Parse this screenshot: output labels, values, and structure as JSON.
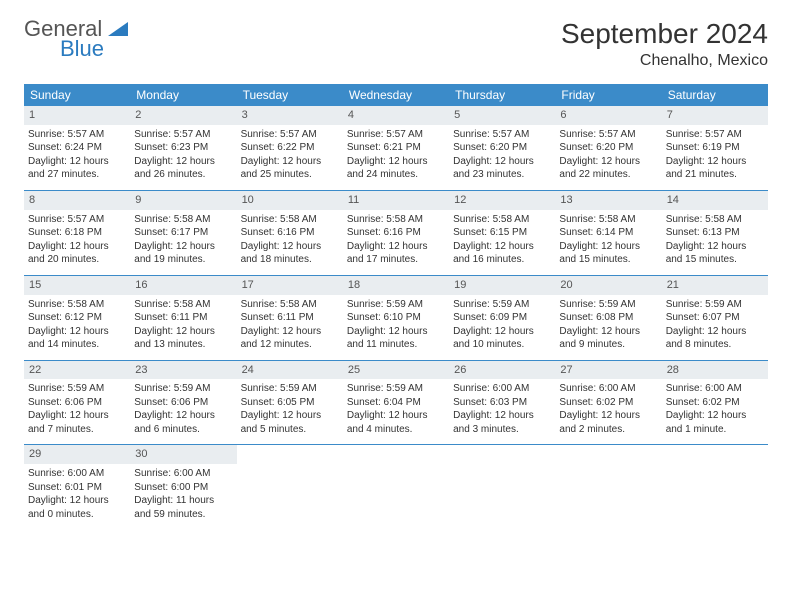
{
  "logo": {
    "word1": "General",
    "word2": "Blue",
    "icon_color": "#2b7bbf"
  },
  "title": "September 2024",
  "location": "Chenalho, Mexico",
  "colors": {
    "header_bg": "#3b8bc9",
    "daynum_bg": "#e9edf0",
    "row_border": "#3b8bc9",
    "text": "#333333"
  },
  "weekdays": [
    "Sunday",
    "Monday",
    "Tuesday",
    "Wednesday",
    "Thursday",
    "Friday",
    "Saturday"
  ],
  "days": [
    {
      "n": "1",
      "sr": "5:57 AM",
      "ss": "6:24 PM",
      "dl": "12 hours and 27 minutes."
    },
    {
      "n": "2",
      "sr": "5:57 AM",
      "ss": "6:23 PM",
      "dl": "12 hours and 26 minutes."
    },
    {
      "n": "3",
      "sr": "5:57 AM",
      "ss": "6:22 PM",
      "dl": "12 hours and 25 minutes."
    },
    {
      "n": "4",
      "sr": "5:57 AM",
      "ss": "6:21 PM",
      "dl": "12 hours and 24 minutes."
    },
    {
      "n": "5",
      "sr": "5:57 AM",
      "ss": "6:20 PM",
      "dl": "12 hours and 23 minutes."
    },
    {
      "n": "6",
      "sr": "5:57 AM",
      "ss": "6:20 PM",
      "dl": "12 hours and 22 minutes."
    },
    {
      "n": "7",
      "sr": "5:57 AM",
      "ss": "6:19 PM",
      "dl": "12 hours and 21 minutes."
    },
    {
      "n": "8",
      "sr": "5:57 AM",
      "ss": "6:18 PM",
      "dl": "12 hours and 20 minutes."
    },
    {
      "n": "9",
      "sr": "5:58 AM",
      "ss": "6:17 PM",
      "dl": "12 hours and 19 minutes."
    },
    {
      "n": "10",
      "sr": "5:58 AM",
      "ss": "6:16 PM",
      "dl": "12 hours and 18 minutes."
    },
    {
      "n": "11",
      "sr": "5:58 AM",
      "ss": "6:16 PM",
      "dl": "12 hours and 17 minutes."
    },
    {
      "n": "12",
      "sr": "5:58 AM",
      "ss": "6:15 PM",
      "dl": "12 hours and 16 minutes."
    },
    {
      "n": "13",
      "sr": "5:58 AM",
      "ss": "6:14 PM",
      "dl": "12 hours and 15 minutes."
    },
    {
      "n": "14",
      "sr": "5:58 AM",
      "ss": "6:13 PM",
      "dl": "12 hours and 15 minutes."
    },
    {
      "n": "15",
      "sr": "5:58 AM",
      "ss": "6:12 PM",
      "dl": "12 hours and 14 minutes."
    },
    {
      "n": "16",
      "sr": "5:58 AM",
      "ss": "6:11 PM",
      "dl": "12 hours and 13 minutes."
    },
    {
      "n": "17",
      "sr": "5:58 AM",
      "ss": "6:11 PM",
      "dl": "12 hours and 12 minutes."
    },
    {
      "n": "18",
      "sr": "5:59 AM",
      "ss": "6:10 PM",
      "dl": "12 hours and 11 minutes."
    },
    {
      "n": "19",
      "sr": "5:59 AM",
      "ss": "6:09 PM",
      "dl": "12 hours and 10 minutes."
    },
    {
      "n": "20",
      "sr": "5:59 AM",
      "ss": "6:08 PM",
      "dl": "12 hours and 9 minutes."
    },
    {
      "n": "21",
      "sr": "5:59 AM",
      "ss": "6:07 PM",
      "dl": "12 hours and 8 minutes."
    },
    {
      "n": "22",
      "sr": "5:59 AM",
      "ss": "6:06 PM",
      "dl": "12 hours and 7 minutes."
    },
    {
      "n": "23",
      "sr": "5:59 AM",
      "ss": "6:06 PM",
      "dl": "12 hours and 6 minutes."
    },
    {
      "n": "24",
      "sr": "5:59 AM",
      "ss": "6:05 PM",
      "dl": "12 hours and 5 minutes."
    },
    {
      "n": "25",
      "sr": "5:59 AM",
      "ss": "6:04 PM",
      "dl": "12 hours and 4 minutes."
    },
    {
      "n": "26",
      "sr": "6:00 AM",
      "ss": "6:03 PM",
      "dl": "12 hours and 3 minutes."
    },
    {
      "n": "27",
      "sr": "6:00 AM",
      "ss": "6:02 PM",
      "dl": "12 hours and 2 minutes."
    },
    {
      "n": "28",
      "sr": "6:00 AM",
      "ss": "6:02 PM",
      "dl": "12 hours and 1 minute."
    },
    {
      "n": "29",
      "sr": "6:00 AM",
      "ss": "6:01 PM",
      "dl": "12 hours and 0 minutes."
    },
    {
      "n": "30",
      "sr": "6:00 AM",
      "ss": "6:00 PM",
      "dl": "11 hours and 59 minutes."
    }
  ],
  "labels": {
    "sunrise": "Sunrise:",
    "sunset": "Sunset:",
    "daylight": "Daylight:"
  }
}
